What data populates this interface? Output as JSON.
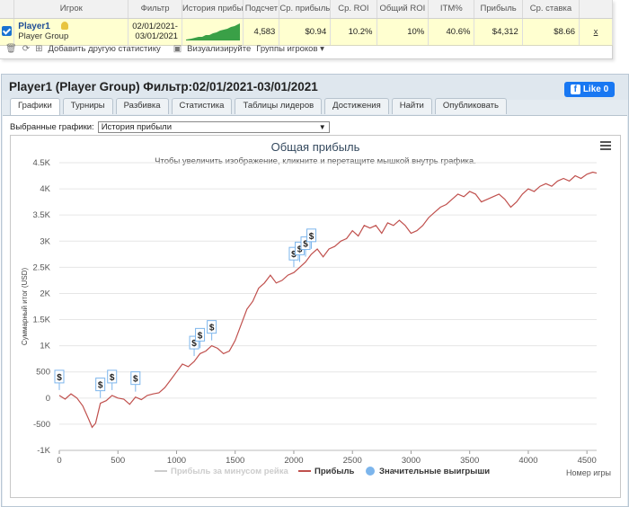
{
  "stats_table": {
    "headers": [
      "",
      "Игрок",
      "Фильтр",
      "История прибы",
      "Подсчет",
      "Ср. прибыль",
      "Ср. ROI",
      "Общий ROI",
      "ITM%",
      "Прибыль",
      "Ср. ставка",
      ""
    ],
    "row": {
      "player_name": "Player1",
      "player_group": "Player Group",
      "filter_line1": "02/01/2021-",
      "filter_line2": "03/01/2021",
      "count": "4,583",
      "avg_profit": "$0.94",
      "avg_roi": "10.2%",
      "total_roi": "10%",
      "itm": "40.6%",
      "profit": "$4,312",
      "avg_stake": "$8.66",
      "remove": "x"
    }
  },
  "toolbar": {
    "add_stats": "Добавить другую статистику",
    "visualize": "Визуализируйте",
    "groups": "Группы игроков"
  },
  "main": {
    "title": "Player1 (Player Group) Фильтр:02/01/2021-03/01/2021",
    "like_label": "Like 0",
    "tabs": [
      "Графики",
      "Турниры",
      "Разбивка",
      "Статистика",
      "Таблицы лидеров",
      "Достижения",
      "Найти",
      "Опубликовать"
    ],
    "active_tab": "Графики",
    "selected_charts_label": "Выбранные графики:",
    "selected_chart_value": "История прибыли"
  },
  "chart_data": {
    "type": "line",
    "title": "Общая прибыль",
    "subtitle": "Чтобы увеличить изображение, кликните и перетащите мышкой внутрь графика.",
    "xlabel": "Номер игры",
    "ylabel": "Суммарный итог (USD)",
    "xlim": [
      0,
      4583
    ],
    "ylim": [
      -1000,
      4500
    ],
    "x_ticks": [
      "0",
      "500",
      "1000",
      "1500",
      "2000",
      "2500",
      "3000",
      "3500",
      "4000",
      "4500"
    ],
    "y_ticks": [
      "-1K",
      "-500",
      "0",
      "500",
      "1K",
      "1.5K",
      "2K",
      "2.5K",
      "3K",
      "3.5K",
      "4K",
      "4.5K"
    ],
    "legend": [
      "Прибыль за минусом рейка",
      "Прибыль",
      "Значительные выигрыши"
    ],
    "series": [
      {
        "name": "Прибыль",
        "color": "#c0504d",
        "points": [
          [
            0,
            50
          ],
          [
            50,
            -20
          ],
          [
            100,
            80
          ],
          [
            150,
            0
          ],
          [
            200,
            -150
          ],
          [
            250,
            -400
          ],
          [
            280,
            -560
          ],
          [
            310,
            -480
          ],
          [
            350,
            -100
          ],
          [
            400,
            -50
          ],
          [
            450,
            50
          ],
          [
            500,
            0
          ],
          [
            550,
            -20
          ],
          [
            600,
            -120
          ],
          [
            650,
            20
          ],
          [
            700,
            -30
          ],
          [
            750,
            50
          ],
          [
            800,
            80
          ],
          [
            850,
            100
          ],
          [
            900,
            200
          ],
          [
            950,
            350
          ],
          [
            1000,
            500
          ],
          [
            1050,
            650
          ],
          [
            1100,
            600
          ],
          [
            1150,
            700
          ],
          [
            1200,
            850
          ],
          [
            1250,
            900
          ],
          [
            1300,
            1000
          ],
          [
            1350,
            950
          ],
          [
            1400,
            850
          ],
          [
            1450,
            900
          ],
          [
            1500,
            1100
          ],
          [
            1550,
            1400
          ],
          [
            1600,
            1700
          ],
          [
            1650,
            1850
          ],
          [
            1700,
            2100
          ],
          [
            1750,
            2200
          ],
          [
            1800,
            2350
          ],
          [
            1850,
            2200
          ],
          [
            1900,
            2250
          ],
          [
            1950,
            2350
          ],
          [
            2000,
            2400
          ],
          [
            2050,
            2500
          ],
          [
            2100,
            2600
          ],
          [
            2150,
            2750
          ],
          [
            2200,
            2850
          ],
          [
            2250,
            2700
          ],
          [
            2300,
            2850
          ],
          [
            2350,
            2900
          ],
          [
            2400,
            3000
          ],
          [
            2450,
            3050
          ],
          [
            2500,
            3200
          ],
          [
            2550,
            3100
          ],
          [
            2600,
            3300
          ],
          [
            2650,
            3250
          ],
          [
            2700,
            3300
          ],
          [
            2750,
            3150
          ],
          [
            2800,
            3350
          ],
          [
            2850,
            3300
          ],
          [
            2900,
            3400
          ],
          [
            2950,
            3300
          ],
          [
            3000,
            3150
          ],
          [
            3050,
            3200
          ],
          [
            3100,
            3300
          ],
          [
            3150,
            3450
          ],
          [
            3200,
            3550
          ],
          [
            3250,
            3650
          ],
          [
            3300,
            3700
          ],
          [
            3350,
            3800
          ],
          [
            3400,
            3900
          ],
          [
            3450,
            3850
          ],
          [
            3500,
            3950
          ],
          [
            3550,
            3900
          ],
          [
            3600,
            3750
          ],
          [
            3650,
            3800
          ],
          [
            3700,
            3850
          ],
          [
            3750,
            3900
          ],
          [
            3800,
            3800
          ],
          [
            3850,
            3650
          ],
          [
            3900,
            3750
          ],
          [
            3950,
            3900
          ],
          [
            4000,
            4000
          ],
          [
            4050,
            3950
          ],
          [
            4100,
            4050
          ],
          [
            4150,
            4100
          ],
          [
            4200,
            4050
          ],
          [
            4250,
            4150
          ],
          [
            4300,
            4200
          ],
          [
            4350,
            4150
          ],
          [
            4400,
            4250
          ],
          [
            4450,
            4200
          ],
          [
            4500,
            4280
          ],
          [
            4550,
            4320
          ],
          [
            4583,
            4300
          ]
        ]
      }
    ],
    "notable_wins_x": [
      0,
      350,
      450,
      650,
      1150,
      1200,
      1300,
      2000,
      2050,
      2100,
      2150
    ]
  }
}
